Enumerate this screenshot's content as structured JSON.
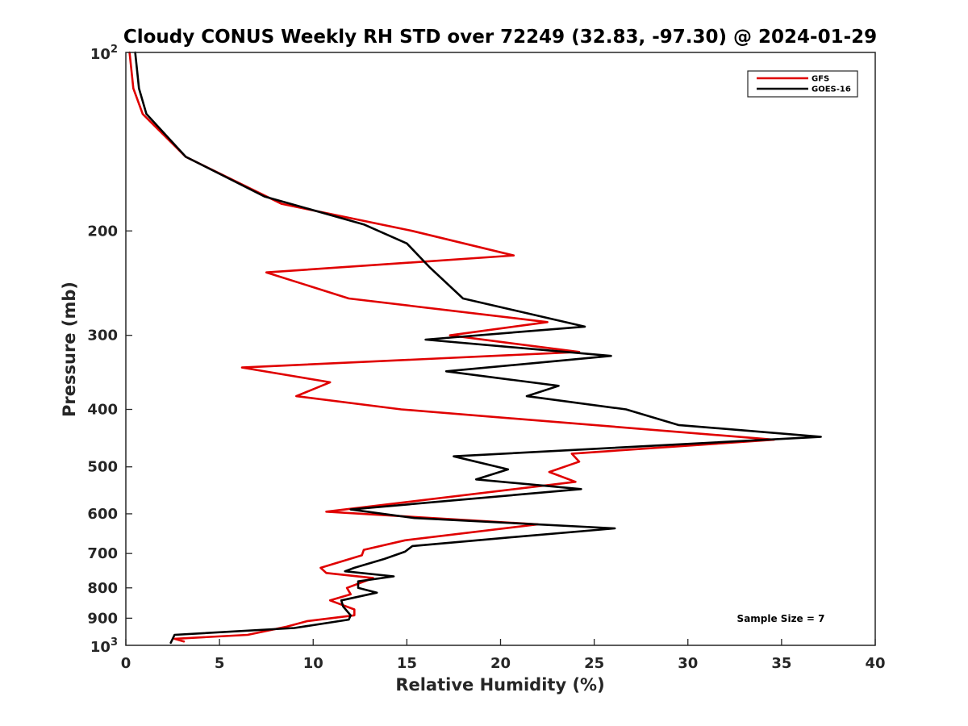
{
  "chart_data": {
    "type": "line",
    "title": "Cloudy CONUS Weekly RH STD over 72249 (32.83, -97.30) @ 2024-01-29",
    "xlabel": "Relative Humidity (%)",
    "ylabel": "Pressure (mb)",
    "xlim": [
      0,
      40
    ],
    "ylim": [
      100,
      1000
    ],
    "y_scale": "log",
    "y_reversed": true,
    "grid": false,
    "legend_position": "top-right",
    "x_ticks": [
      0,
      5,
      10,
      15,
      20,
      25,
      30,
      35,
      40
    ],
    "x_tick_labels": [
      "0",
      "5",
      "10",
      "15",
      "20",
      "25",
      "30",
      "35",
      "40"
    ],
    "y_ticks": [
      200,
      300,
      400,
      500,
      600,
      700,
      800,
      900
    ],
    "y_tick_labels": [
      "200",
      "300",
      "400",
      "500",
      "600",
      "700",
      "800",
      "900"
    ],
    "y_decade_labels": [
      {
        "value": 100,
        "base": "10",
        "exp": "2"
      },
      {
        "value": 1000,
        "base": "10",
        "exp": "3"
      }
    ],
    "annotation": "Sample Size = 7",
    "series": [
      {
        "name": "GFS",
        "color": "#e00000",
        "points": [
          [
            0.2,
            100
          ],
          [
            0.4,
            115
          ],
          [
            0.9,
            127
          ],
          [
            3.2,
            150
          ],
          [
            8.3,
            180
          ],
          [
            15.3,
            200
          ],
          [
            20.7,
            220
          ],
          [
            7.5,
            235
          ],
          [
            11.9,
            260
          ],
          [
            22.5,
            285
          ],
          [
            17.3,
            300
          ],
          [
            24.2,
            320
          ],
          [
            6.2,
            340
          ],
          [
            10.9,
            360
          ],
          [
            9.1,
            380
          ],
          [
            14.7,
            400
          ],
          [
            34.6,
            450
          ],
          [
            23.8,
            475
          ],
          [
            24.2,
            490
          ],
          [
            22.6,
            510
          ],
          [
            24.0,
            530
          ],
          [
            10.7,
            595
          ],
          [
            22.0,
            625
          ],
          [
            14.9,
            665
          ],
          [
            12.7,
            690
          ],
          [
            12.6,
            705
          ],
          [
            10.4,
            740
          ],
          [
            10.7,
            755
          ],
          [
            13.2,
            770
          ],
          [
            11.8,
            800
          ],
          [
            12.0,
            820
          ],
          [
            10.9,
            840
          ],
          [
            12.2,
            870
          ],
          [
            12.2,
            890
          ],
          [
            9.7,
            910
          ],
          [
            8.6,
            930
          ],
          [
            6.5,
            960
          ],
          [
            2.6,
            975
          ],
          [
            3.1,
            985
          ]
        ]
      },
      {
        "name": "GOES-16",
        "color": "#000000",
        "points": [
          [
            0.5,
            100
          ],
          [
            0.7,
            115
          ],
          [
            1.1,
            127
          ],
          [
            3.2,
            150
          ],
          [
            7.4,
            175
          ],
          [
            12.7,
            195
          ],
          [
            15.0,
            210
          ],
          [
            16.2,
            230
          ],
          [
            18.0,
            260
          ],
          [
            24.5,
            290
          ],
          [
            16.0,
            305
          ],
          [
            25.9,
            325
          ],
          [
            17.1,
            345
          ],
          [
            23.1,
            365
          ],
          [
            21.4,
            380
          ],
          [
            26.7,
            400
          ],
          [
            29.5,
            425
          ],
          [
            37.1,
            445
          ],
          [
            17.5,
            480
          ],
          [
            20.4,
            505
          ],
          [
            18.7,
            525
          ],
          [
            24.3,
            545
          ],
          [
            12.0,
            590
          ],
          [
            15.4,
            610
          ],
          [
            26.1,
            635
          ],
          [
            19.9,
            660
          ],
          [
            15.3,
            680
          ],
          [
            14.9,
            695
          ],
          [
            13.8,
            715
          ],
          [
            12.2,
            740
          ],
          [
            11.7,
            750
          ],
          [
            14.3,
            765
          ],
          [
            12.4,
            780
          ],
          [
            12.4,
            800
          ],
          [
            13.4,
            815
          ],
          [
            11.5,
            840
          ],
          [
            11.6,
            860
          ],
          [
            12.0,
            890
          ],
          [
            11.9,
            905
          ],
          [
            9.0,
            935
          ],
          [
            2.6,
            960
          ],
          [
            2.4,
            990
          ]
        ]
      }
    ]
  }
}
